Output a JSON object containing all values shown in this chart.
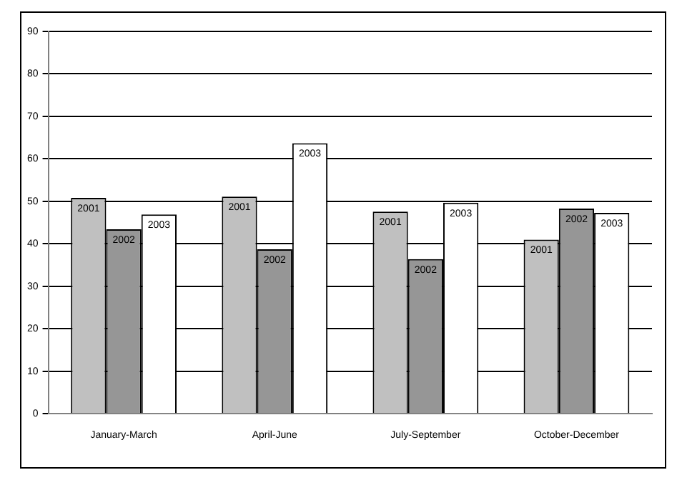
{
  "chart_data": {
    "type": "bar",
    "categories": [
      "January-March",
      "April-June",
      "July-September",
      "October-December"
    ],
    "series": [
      {
        "name": "2001",
        "color": "#c0c0c0",
        "values": [
          50.8,
          51.1,
          47.6,
          41.0
        ]
      },
      {
        "name": "2002",
        "color": "#969696",
        "values": [
          43.4,
          38.7,
          36.4,
          48.3
        ]
      },
      {
        "name": "2003",
        "color": "#ffffff",
        "values": [
          46.9,
          63.7,
          49.7,
          47.3
        ]
      }
    ],
    "ylim": [
      0,
      90
    ],
    "yticks": [
      0,
      10,
      20,
      30,
      40,
      50,
      60,
      70,
      80,
      90
    ],
    "grid": "y",
    "legend": false
  }
}
